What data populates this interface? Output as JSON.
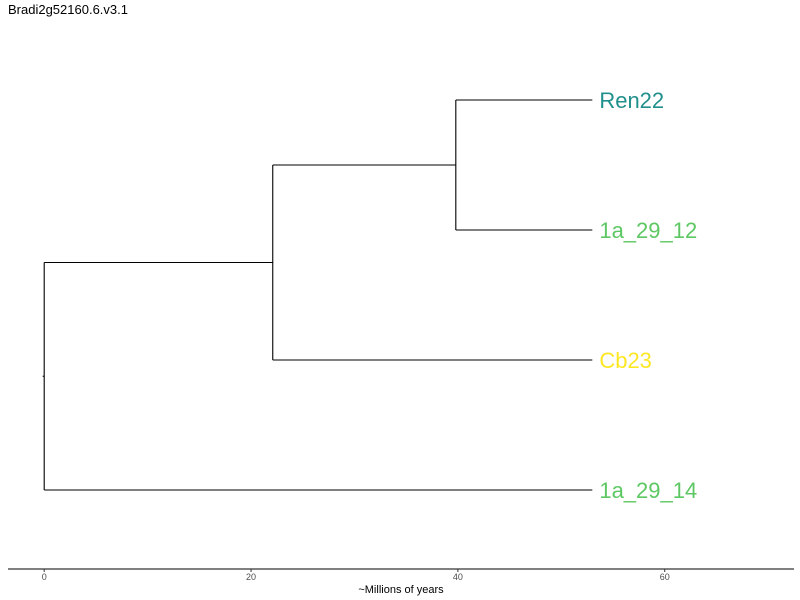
{
  "title": "Bradi2g52160.6.v3.1",
  "chart_data": {
    "type": "tree",
    "xlabel": "~Millions of years",
    "xticks": [
      0,
      20,
      40,
      60
    ],
    "xlim": [
      -3.5,
      72.5
    ],
    "tips": [
      {
        "label": "Ren22",
        "color": "#21908C",
        "depth": 53
      },
      {
        "label": "1a_29_12",
        "color": "#5DC863",
        "depth": 53
      },
      {
        "label": "Cb23",
        "color": "#FDE725",
        "depth": 53
      },
      {
        "label": "1a_29_14",
        "color": "#5DC863",
        "depth": 53
      }
    ],
    "nodes": [
      {
        "id": "n_ren_1a12",
        "depth": 39.8,
        "children": [
          "Ren22",
          "1a_29_12"
        ]
      },
      {
        "id": "n_inner",
        "depth": 22.1,
        "children": [
          "n_ren_1a12",
          "Cb23"
        ]
      },
      {
        "id": "n_root",
        "depth": 0,
        "children": [
          "n_inner",
          "1a_29_14"
        ]
      }
    ]
  }
}
